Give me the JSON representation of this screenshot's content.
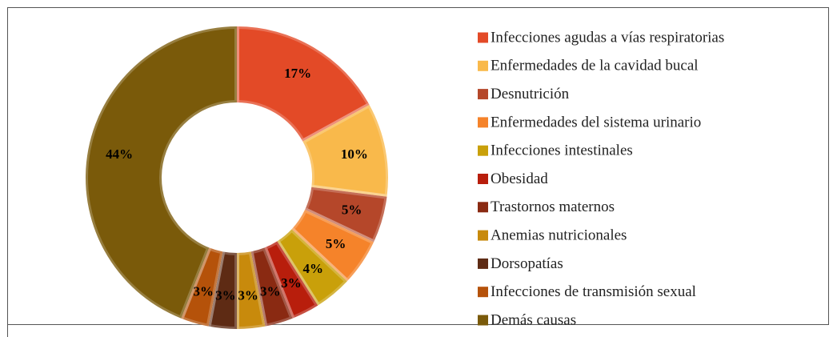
{
  "chart_data": {
    "type": "donut",
    "categories": [
      "Infecciones agudas a vías respiratorias",
      "Enfermedades de la cavidad bucal",
      "Desnutrición",
      "Enfermedades del sistema urinario",
      "Infecciones intestinales",
      "Obesidad",
      "Trastornos maternos",
      "Anemias nutricionales",
      "Dorsopatías",
      "Infecciones de transmisión sexual",
      "Demás causas"
    ],
    "values": [
      17,
      10,
      5,
      5,
      4,
      3,
      3,
      3,
      3,
      3,
      44
    ],
    "value_labels": [
      "17%",
      "10%",
      "5%",
      "5%",
      "4%",
      "3%",
      "3%",
      "3%",
      "3%",
      "3%",
      "44%"
    ],
    "colors": [
      "#e34a27",
      "#f9b94b",
      "#b5472a",
      "#f5832a",
      "#c9a00a",
      "#b81e0c",
      "#8a2a12",
      "#c88a0c",
      "#5e2b14",
      "#b5520a",
      "#7a5a0a"
    ],
    "legend": "right"
  }
}
